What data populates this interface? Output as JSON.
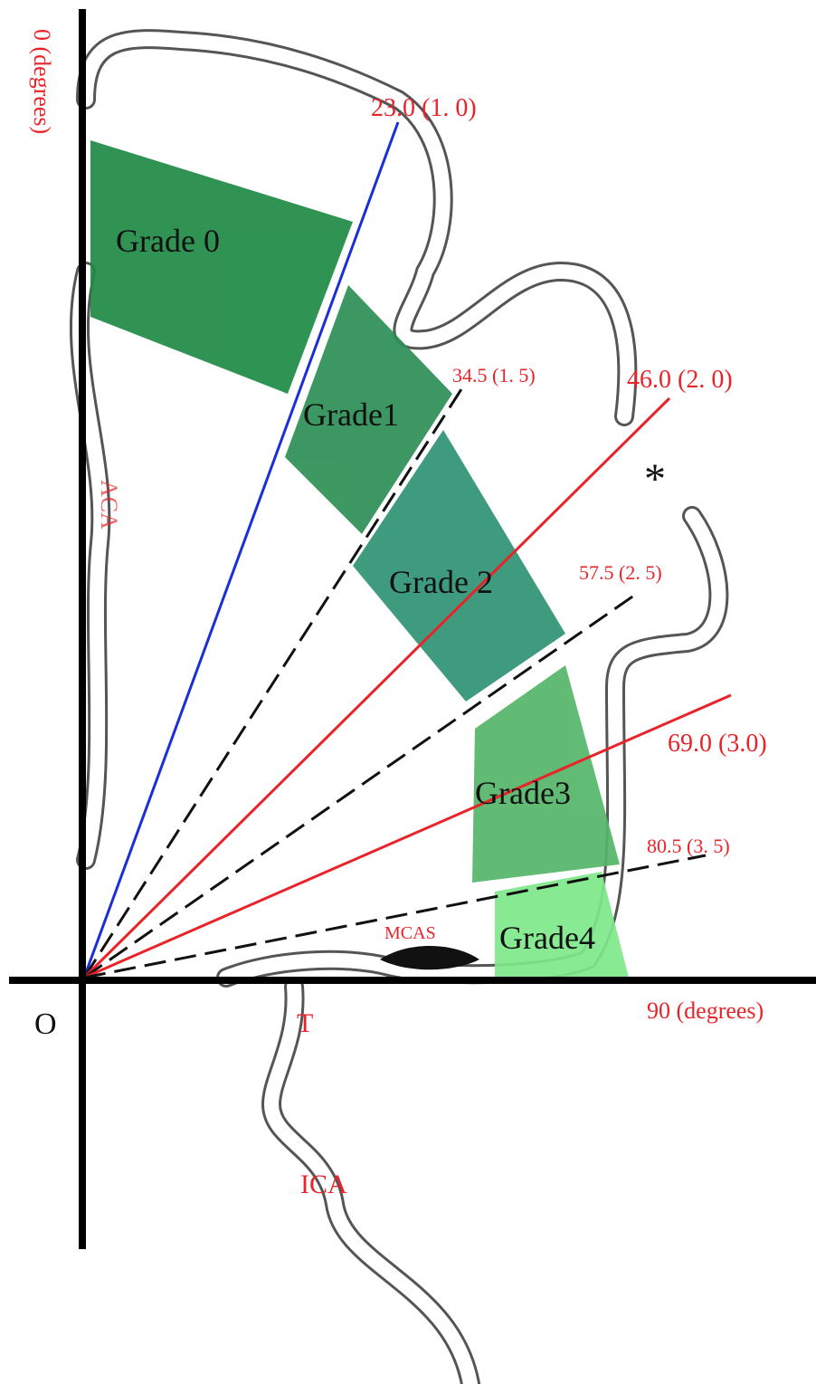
{
  "axes": {
    "y_label": "0 (degrees)",
    "x_label": "90 (degrees)",
    "origin": "O"
  },
  "rays": [
    "23.0 (1. 0)",
    "34.5 (1. 5)",
    "46.0 (2. 0)",
    "57.5 (2. 5)",
    "69.0 (3.0)",
    "80.5 (3. 5)"
  ],
  "grades": [
    "Grade 0",
    "Grade1",
    "Grade 2",
    "Grade3",
    "Grade4"
  ],
  "vessels": {
    "aca": "ACA",
    "mcas": "MCAS",
    "t": "T",
    "ica": "ICA",
    "marker": "*"
  }
}
